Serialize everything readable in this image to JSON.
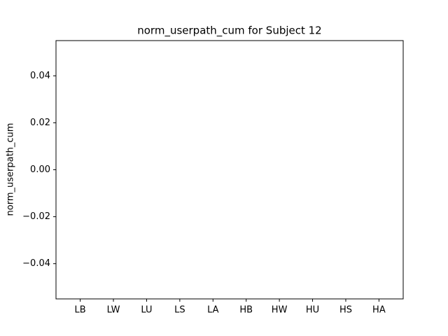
{
  "chart_data": {
    "type": "bar",
    "title": "norm_userpath_cum for Subject 12",
    "ylabel": "norm_userpath_cum",
    "categories": [
      "LB",
      "LW",
      "LU",
      "LS",
      "LA",
      "HB",
      "HW",
      "HU",
      "HS",
      "HA"
    ],
    "values": [
      0,
      0,
      0,
      0,
      0,
      0,
      0,
      0,
      0,
      0
    ],
    "color": "#1f77b4",
    "ylim": [
      -0.055,
      0.055
    ],
    "yticks": [
      {
        "value": -0.04,
        "label": "−0.04"
      },
      {
        "value": -0.02,
        "label": "−0.02"
      },
      {
        "value": 0,
        "label": "0.00"
      },
      0.02,
      0.04
    ],
    "grid": false
  }
}
